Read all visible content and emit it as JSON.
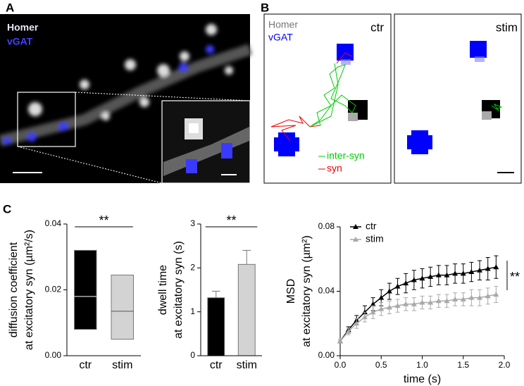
{
  "panels": {
    "a": "A",
    "b": "B",
    "c": "C"
  },
  "image_a": {
    "labels": [
      "Homer",
      "vGAT"
    ]
  },
  "image_b": {
    "labels": [
      "Homer",
      "vGAT"
    ],
    "conditions": [
      "ctr",
      "stim"
    ],
    "legend": [
      "inter-syn",
      "syn"
    ]
  },
  "chart_data": [
    {
      "type": "box",
      "ylabel": [
        "diffusion coefficient",
        "at excitatory syn (µm²/s)"
      ],
      "categories": [
        "ctr",
        "stim"
      ],
      "low": [
        0.008,
        0.005
      ],
      "median": [
        0.018,
        0.0135
      ],
      "high": [
        0.032,
        0.0245
      ],
      "colors": [
        "#000000",
        "#d3d3d3"
      ],
      "median_colors": [
        "#ffffff",
        "#555555"
      ],
      "ylim": [
        0,
        0.04
      ],
      "yticks": [
        {
          "value": 0,
          "label": "0.00"
        },
        0.02,
        0.04
      ],
      "annotation": "**"
    },
    {
      "type": "bar",
      "ylabel": [
        "dwell time",
        "at excitatory syn (s)"
      ],
      "categories": [
        "ctr",
        "stim"
      ],
      "values": [
        1.32,
        2.08
      ],
      "errors": [
        0.15,
        0.32
      ],
      "colors": [
        "#000000",
        "#d3d3d3"
      ],
      "ylim": [
        0,
        3
      ],
      "yticks": [
        0,
        1,
        2,
        3
      ],
      "annotation": "**"
    },
    {
      "type": "line",
      "ylabel": [
        "MSD",
        "at excitatory syn (µm²)"
      ],
      "xlabel": "time (s)",
      "x": [
        0,
        0.1,
        0.2,
        0.3,
        0.4,
        0.5,
        0.6,
        0.7,
        0.8,
        0.9,
        1,
        1.1,
        1.2,
        1.3,
        1.4,
        1.5,
        1.6,
        1.7,
        1.8,
        1.9
      ],
      "series": [
        {
          "name": "ctr",
          "color": "#000000",
          "values": [
            0.009,
            0.016,
            0.022,
            0.027,
            0.032,
            0.036,
            0.04,
            0.043,
            0.045,
            0.047,
            0.048,
            0.049,
            0.05,
            0.05,
            0.051,
            0.051,
            0.052,
            0.053,
            0.054,
            0.055
          ],
          "errors": [
            0.001,
            0.002,
            0.003,
            0.004,
            0.004,
            0.005,
            0.005,
            0.005,
            0.006,
            0.006,
            0.006,
            0.006,
            0.006,
            0.006,
            0.006,
            0.006,
            0.006,
            0.006,
            0.007,
            0.007
          ]
        },
        {
          "name": "stim",
          "color": "#a9a9a9",
          "values": [
            0.009,
            0.015,
            0.02,
            0.024,
            0.027,
            0.029,
            0.03,
            0.031,
            0.032,
            0.032,
            0.033,
            0.033,
            0.034,
            0.034,
            0.035,
            0.035,
            0.036,
            0.036,
            0.037,
            0.038
          ],
          "errors": [
            0.001,
            0.002,
            0.003,
            0.003,
            0.004,
            0.004,
            0.004,
            0.004,
            0.004,
            0.004,
            0.004,
            0.004,
            0.004,
            0.004,
            0.004,
            0.004,
            0.005,
            0.005,
            0.005,
            0.005
          ]
        }
      ],
      "xlim": [
        0,
        2
      ],
      "xticks": [
        {
          "value": 0,
          "label": "0.0"
        },
        0.5,
        {
          "value": 1,
          "label": "1.0"
        },
        1.5,
        {
          "value": 2,
          "label": "2.0"
        }
      ],
      "ylim": [
        0,
        0.08
      ],
      "yticks": [
        {
          "value": 0,
          "label": "0.00"
        },
        0.04,
        0.08
      ],
      "legend": "upper left",
      "annotation": "**"
    }
  ]
}
